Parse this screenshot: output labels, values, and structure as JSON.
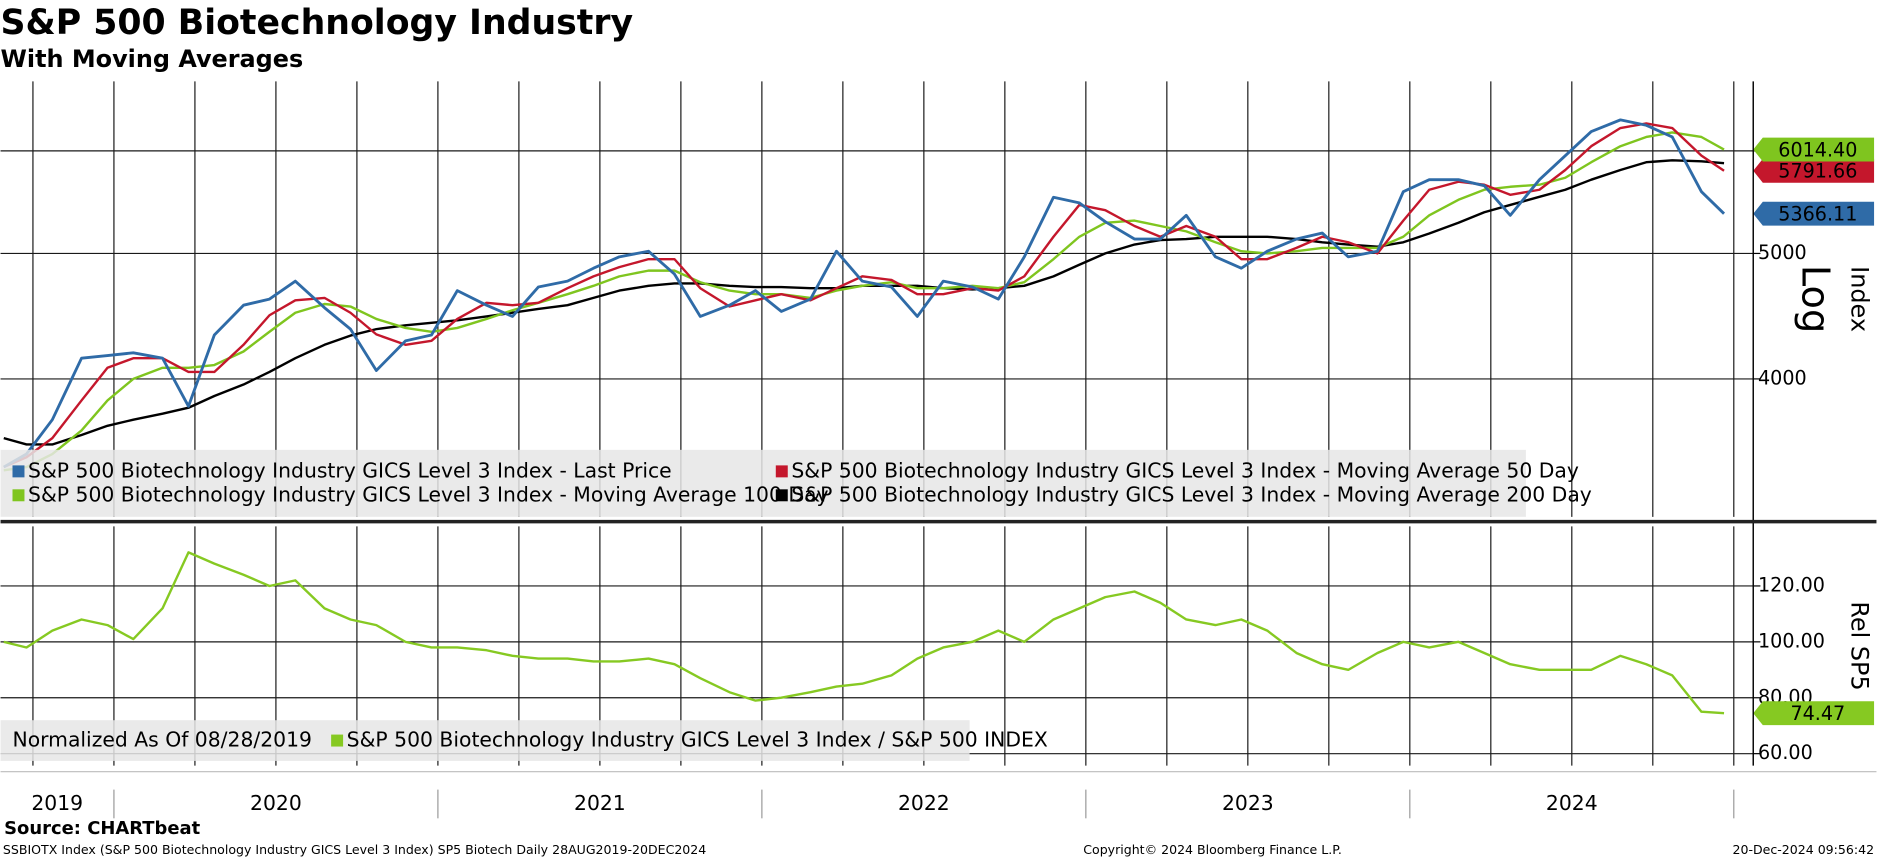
{
  "chart_data": [
    {
      "type": "line",
      "title": "S&P 500 Biotechnology Industry",
      "subtitle": "With Moving Averages",
      "y_label": "Index",
      "scale_label": "Log",
      "log_scale": true,
      "grid": true,
      "legend": "bottom-left",
      "xlim": [
        2019.65,
        2025.06
      ],
      "xgrid": [
        2019.75,
        2020,
        2020.25,
        2020.5,
        2020.75,
        2021,
        2021.25,
        2021.5,
        2021.75,
        2022,
        2022.25,
        2022.5,
        2022.75,
        2023,
        2023.25,
        2023.5,
        2023.75,
        2024,
        2024.25,
        2024.5,
        2024.75,
        2025
      ],
      "x": [
        2019.66,
        2019.73,
        2019.81,
        2019.9,
        2019.98,
        2020.06,
        2020.15,
        2020.23,
        2020.31,
        2020.4,
        2020.48,
        2020.56,
        2020.65,
        2020.73,
        2020.81,
        2020.9,
        2020.98,
        2021.06,
        2021.15,
        2021.23,
        2021.31,
        2021.4,
        2021.48,
        2021.56,
        2021.65,
        2021.73,
        2021.81,
        2021.9,
        2021.98,
        2022.06,
        2022.15,
        2022.23,
        2022.31,
        2022.4,
        2022.48,
        2022.56,
        2022.65,
        2022.73,
        2022.81,
        2022.9,
        2022.98,
        2023.06,
        2023.15,
        2023.23,
        2023.31,
        2023.4,
        2023.48,
        2023.56,
        2023.65,
        2023.73,
        2023.81,
        2023.9,
        2023.98,
        2024.06,
        2024.15,
        2024.23,
        2024.31,
        2024.4,
        2024.48,
        2024.56,
        2024.65,
        2024.73,
        2024.81,
        2024.9,
        2024.97
      ],
      "ylim": [
        3130,
        6790
      ],
      "yticks": [
        4000,
        5000,
        6000
      ],
      "series": [
        {
          "name": "S&P 500 Biotechnology Industry GICS Level 3 Index - Last Price",
          "color": "#2f6ba7",
          "values": [
            3420,
            3500,
            3720,
            4150,
            4170,
            4190,
            4150,
            3810,
            4325,
            4560,
            4610,
            4760,
            4540,
            4370,
            4060,
            4280,
            4325,
            4680,
            4560,
            4470,
            4710,
            4760,
            4870,
            4970,
            5020,
            4820,
            4470,
            4560,
            4680,
            4510,
            4610,
            5020,
            4760,
            4710,
            4470,
            4760,
            4710,
            4610,
            4970,
            5525,
            5470,
            5290,
            5130,
            5130,
            5350,
            4970,
            4870,
            5020,
            5130,
            5185,
            4970,
            5020,
            5580,
            5700,
            5700,
            5640,
            5350,
            5700,
            5950,
            6210,
            6340,
            6280,
            6150,
            5580,
            5366.11
          ],
          "value_labels": [
            null,
            null,
            null,
            null,
            null,
            null,
            null,
            null,
            null,
            null,
            null,
            null,
            null,
            null,
            null,
            null,
            null,
            null,
            null,
            null,
            null,
            null,
            null,
            null,
            null,
            null,
            null,
            null,
            null,
            null,
            null,
            null,
            null,
            null,
            null,
            null,
            null,
            null,
            null,
            null,
            null,
            null,
            null,
            null,
            null,
            null,
            null,
            null,
            null,
            null,
            null,
            null,
            null,
            null,
            null,
            null,
            null,
            null,
            null,
            null,
            null,
            null,
            null,
            null,
            "5366.11"
          ]
        },
        {
          "name": "S&P 500 Biotechnology Industry GICS Level 3 Index - Moving Average 50 Day",
          "color": "#c4172c",
          "values": [
            3420,
            3480,
            3600,
            3850,
            4080,
            4150,
            4150,
            4050,
            4050,
            4250,
            4480,
            4600,
            4620,
            4500,
            4330,
            4250,
            4280,
            4450,
            4580,
            4560,
            4580,
            4700,
            4800,
            4880,
            4950,
            4950,
            4700,
            4550,
            4600,
            4650,
            4600,
            4700,
            4800,
            4770,
            4650,
            4650,
            4700,
            4680,
            4800,
            5150,
            5450,
            5400,
            5250,
            5150,
            5250,
            5150,
            4950,
            4950,
            5050,
            5150,
            5100,
            5000,
            5300,
            5600,
            5680,
            5650,
            5550,
            5600,
            5800,
            6050,
            6250,
            6300,
            6250,
            5950,
            5791.66
          ],
          "value_labels": [
            null,
            null,
            null,
            null,
            null,
            null,
            null,
            null,
            null,
            null,
            null,
            null,
            null,
            null,
            null,
            null,
            null,
            null,
            null,
            null,
            null,
            null,
            null,
            null,
            null,
            null,
            null,
            null,
            null,
            null,
            null,
            null,
            null,
            null,
            null,
            null,
            null,
            null,
            null,
            null,
            null,
            null,
            null,
            null,
            null,
            null,
            null,
            null,
            null,
            null,
            null,
            null,
            null,
            null,
            null,
            null,
            null,
            null,
            null,
            null,
            null,
            null,
            null,
            null,
            "5791.66"
          ]
        },
        {
          "name": "S&P 500 Biotechnology Industry GICS Level 3 Index - Moving Average 100 Day",
          "color": "#7fc51f",
          "values": [
            3400,
            3420,
            3500,
            3650,
            3850,
            4000,
            4080,
            4080,
            4100,
            4200,
            4350,
            4500,
            4570,
            4550,
            4450,
            4380,
            4350,
            4380,
            4450,
            4520,
            4580,
            4650,
            4720,
            4800,
            4850,
            4850,
            4750,
            4680,
            4650,
            4650,
            4620,
            4680,
            4720,
            4750,
            4700,
            4700,
            4720,
            4700,
            4750,
            4950,
            5150,
            5280,
            5300,
            5250,
            5200,
            5100,
            5020,
            5000,
            5020,
            5050,
            5050,
            5050,
            5150,
            5350,
            5500,
            5600,
            5630,
            5650,
            5720,
            5880,
            6050,
            6150,
            6200,
            6150,
            6014.4
          ],
          "value_labels": [
            null,
            null,
            null,
            null,
            null,
            null,
            null,
            null,
            null,
            null,
            null,
            null,
            null,
            null,
            null,
            null,
            null,
            null,
            null,
            null,
            null,
            null,
            null,
            null,
            null,
            null,
            null,
            null,
            null,
            null,
            null,
            null,
            null,
            null,
            null,
            null,
            null,
            null,
            null,
            null,
            null,
            null,
            null,
            null,
            null,
            null,
            null,
            null,
            null,
            null,
            null,
            null,
            null,
            null,
            null,
            null,
            null,
            null,
            null,
            null,
            null,
            null,
            null,
            null,
            "6014.40"
          ]
        },
        {
          "name": "S&P 500 Biotechnology Industry GICS Level 3 Index - Moving Average 200 Day",
          "color": "#000000",
          "values": [
            3600,
            3560,
            3560,
            3620,
            3680,
            3720,
            3760,
            3800,
            3880,
            3960,
            4050,
            4150,
            4250,
            4320,
            4370,
            4400,
            4420,
            4440,
            4470,
            4500,
            4530,
            4560,
            4620,
            4680,
            4720,
            4740,
            4740,
            4720,
            4710,
            4710,
            4700,
            4700,
            4720,
            4720,
            4720,
            4700,
            4690,
            4700,
            4720,
            4800,
            4900,
            5000,
            5080,
            5120,
            5130,
            5150,
            5150,
            5150,
            5130,
            5100,
            5080,
            5060,
            5100,
            5180,
            5280,
            5380,
            5450,
            5530,
            5600,
            5700,
            5800,
            5880,
            5900,
            5890,
            5870
          ]
        }
      ]
    },
    {
      "type": "line",
      "y_label": "Rel SP5",
      "legend_note": "Normalized As Of 08/28/2019",
      "grid": true,
      "legend": "bottom-left",
      "xlim": [
        2019.65,
        2025.06
      ],
      "xgrid": [
        2019.75,
        2020,
        2020.25,
        2020.5,
        2020.75,
        2021,
        2021.25,
        2021.5,
        2021.75,
        2022,
        2022.25,
        2022.5,
        2022.75,
        2023,
        2023.25,
        2023.5,
        2023.75,
        2024,
        2024.25,
        2024.5,
        2024.75,
        2025
      ],
      "xticks": [
        2020,
        2021,
        2022,
        2023,
        2024,
        2025
      ],
      "categories": [
        "2019",
        "2020",
        "2021",
        "2022",
        "2023",
        "2024"
      ],
      "x": [
        2019.66,
        2019.73,
        2019.81,
        2019.9,
        2019.98,
        2020.06,
        2020.15,
        2020.23,
        2020.31,
        2020.4,
        2020.48,
        2020.56,
        2020.65,
        2020.73,
        2020.81,
        2020.9,
        2020.98,
        2021.06,
        2021.15,
        2021.23,
        2021.31,
        2021.4,
        2021.48,
        2021.56,
        2021.65,
        2021.73,
        2021.81,
        2021.9,
        2021.98,
        2022.06,
        2022.15,
        2022.23,
        2022.31,
        2022.4,
        2022.48,
        2022.56,
        2022.65,
        2022.73,
        2022.81,
        2022.9,
        2022.98,
        2023.06,
        2023.15,
        2023.23,
        2023.31,
        2023.4,
        2023.48,
        2023.56,
        2023.65,
        2023.73,
        2023.81,
        2023.9,
        2023.98,
        2024.06,
        2024.15,
        2024.23,
        2024.31,
        2024.4,
        2024.48,
        2024.56,
        2024.65,
        2024.73,
        2024.81,
        2024.9,
        2024.97
      ],
      "ylim": [
        55.7,
        141.3
      ],
      "yticks": [
        {
          "value": 60,
          "label": "60.00"
        },
        {
          "value": 80,
          "label": "80.00"
        },
        {
          "value": 100,
          "label": "100.00"
        },
        {
          "value": 120,
          "label": "120.00"
        }
      ],
      "series": [
        {
          "name": "S&P 500 Biotechnology Industry GICS Level 3 Index / S&P 500 INDEX",
          "color": "#86c922",
          "values": [
            100,
            98,
            104,
            108,
            106,
            101,
            112,
            132,
            128,
            124,
            120,
            122,
            112,
            108,
            106,
            100,
            98,
            98,
            97,
            95,
            94,
            94,
            93,
            93,
            94,
            92,
            87,
            82,
            79,
            80,
            82,
            84,
            85,
            88,
            94,
            98,
            100,
            104,
            100,
            108,
            112,
            116,
            118,
            114,
            108,
            106,
            108,
            104,
            96,
            92,
            90,
            96,
            100,
            98,
            100,
            96,
            92,
            90,
            90,
            90,
            95,
            92,
            88,
            75,
            74.47
          ],
          "value_labels": [
            null,
            null,
            null,
            null,
            null,
            null,
            null,
            null,
            null,
            null,
            null,
            null,
            null,
            null,
            null,
            null,
            null,
            null,
            null,
            null,
            null,
            null,
            null,
            null,
            null,
            null,
            null,
            null,
            null,
            null,
            null,
            null,
            null,
            null,
            null,
            null,
            null,
            null,
            null,
            null,
            null,
            null,
            null,
            null,
            null,
            null,
            null,
            null,
            null,
            null,
            null,
            null,
            null,
            null,
            null,
            null,
            null,
            null,
            null,
            null,
            null,
            null,
            null,
            null,
            "74.47"
          ]
        }
      ]
    }
  ],
  "footer": {
    "source": "Source: CHARTbeat",
    "description": "SSBIOTX Index (S&P 500 Biotechnology Industry GICS Level 3 Index) SP5 Biotech  Daily 28AUG2019-20DEC2024",
    "copyright": "Copyright© 2024 Bloomberg Finance L.P.",
    "timestamp": "20-Dec-2024 09:56:42"
  }
}
